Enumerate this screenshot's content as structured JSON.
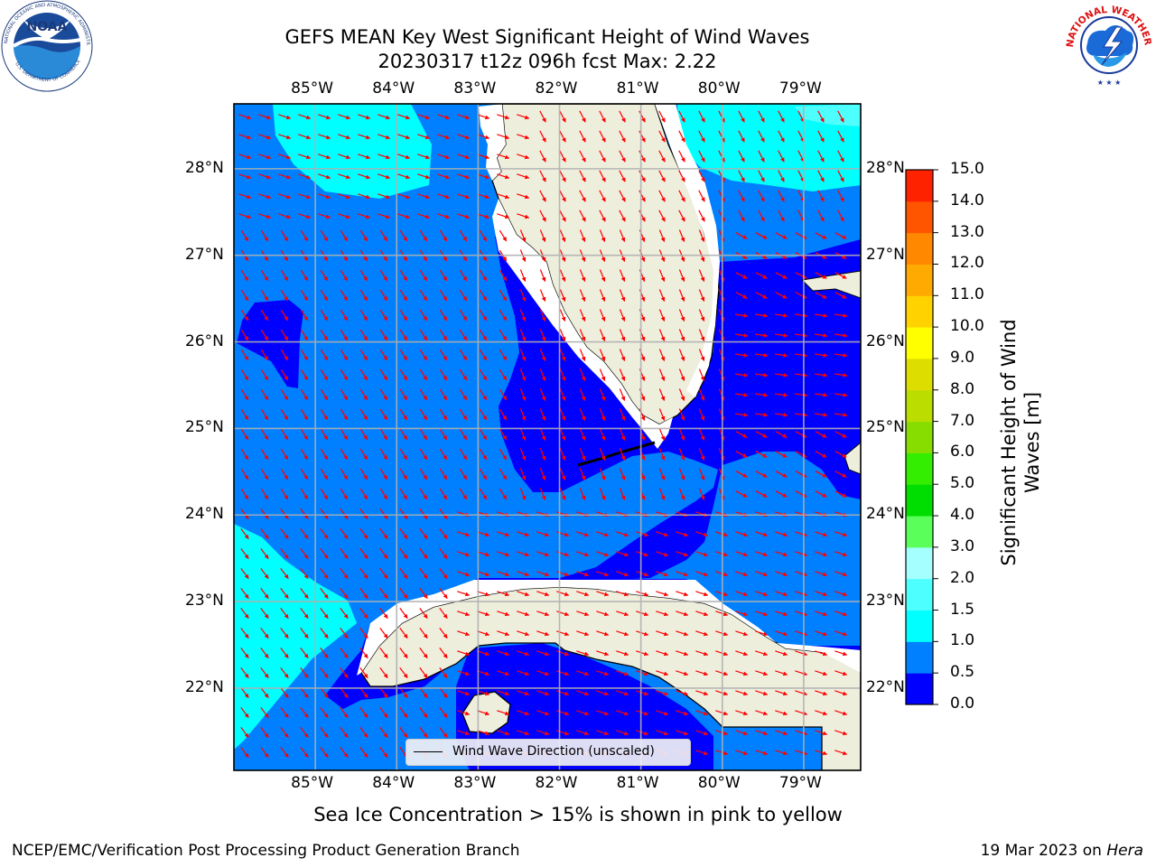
{
  "header": {
    "title_line1": "GEFS MEAN Key West Significant Height of Wind Waves",
    "title_line2": "20230317 t12z 096h fcst   Max: 2.22"
  },
  "logos": {
    "left": "noaa-logo",
    "left_text": "NATIONAL OCEANIC AND ATMOSPHERIC ADMINISTRATION · U.S. DEPARTMENT OF COMMERCE",
    "right": "nws-logo",
    "right_text": "NATIONAL WEATHER SERVICE"
  },
  "map": {
    "lon_labels": [
      "85°W",
      "84°W",
      "83°W",
      "82°W",
      "81°W",
      "80°W",
      "79°W"
    ],
    "lat_labels": [
      "28°N",
      "27°N",
      "26°N",
      "25°N",
      "24°N",
      "23°N",
      "22°N"
    ],
    "lon_range": [
      -86.0,
      -78.3
    ],
    "lat_range": [
      21.05,
      28.75
    ],
    "land_color": "#eeeedd",
    "arrow_color": "#ff0000"
  },
  "legend": {
    "label": "Wind Wave Direction (unscaled)"
  },
  "colorbar": {
    "title": "Significant Height of Wind Waves [m]",
    "title_line1": "Significant Height of Wind",
    "title_line2": "Waves [m]",
    "ticks": [
      "0.0",
      "0.5",
      "1.0",
      "1.5",
      "2.0",
      "3.0",
      "4.0",
      "5.0",
      "6.0",
      "7.0",
      "8.0",
      "9.0",
      "10.0",
      "11.0",
      "12.0",
      "13.0",
      "14.0",
      "15.0"
    ],
    "colors": [
      "#0000ff",
      "#0080ff",
      "#00ffff",
      "#4dffff",
      "#a6ffff",
      "#5aff5a",
      "#00dd00",
      "#33ee00",
      "#88dd00",
      "#bbdd00",
      "#dddd00",
      "#ffff00",
      "#ffd200",
      "#ffaa00",
      "#ff8800",
      "#ff5500",
      "#ff2200"
    ]
  },
  "footer": {
    "caption": "Sea Ice Concentration > 15% is shown in pink to yellow",
    "credit_left": "NCEP/EMC/Verification Post Processing Product Generation Branch",
    "credit_right_prefix": "19 Mar 2023 on ",
    "credit_right_host": "Hera"
  }
}
